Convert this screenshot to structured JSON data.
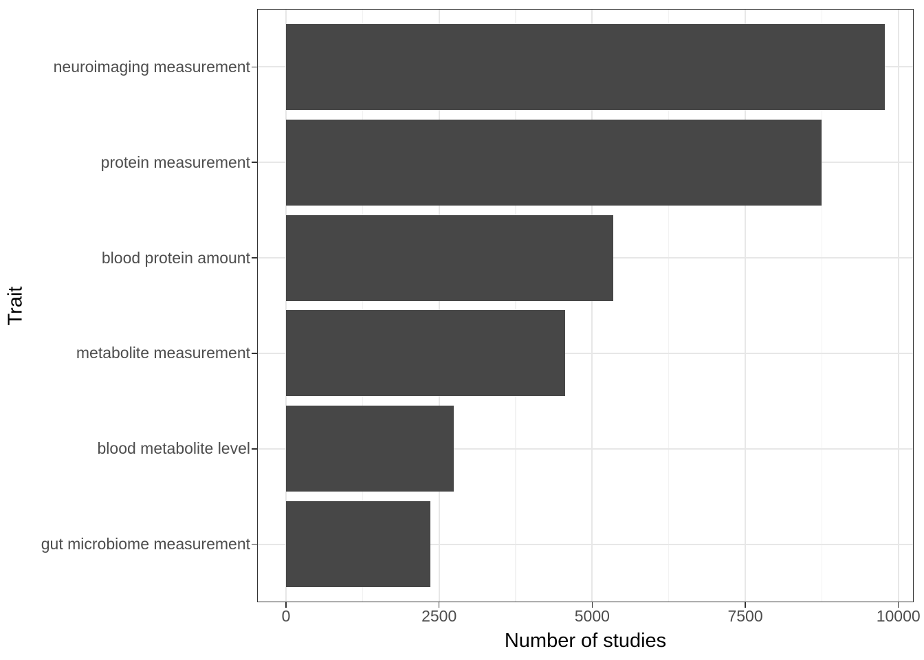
{
  "chart_data": {
    "type": "bar",
    "orientation": "horizontal",
    "title": "",
    "xlabel": "Number of studies",
    "ylabel": "Trait",
    "categories": [
      "neuroimaging measurement",
      "protein measurement",
      "blood protein amount",
      "metabolite measurement",
      "blood metabolite level",
      "gut microbiome measurement"
    ],
    "values": [
      9780,
      8750,
      5340,
      4560,
      2740,
      2360
    ],
    "x_ticks": [
      0,
      2500,
      5000,
      7500,
      10000
    ],
    "x_tick_labels": [
      "0",
      "2500",
      "5000",
      "7500",
      "10000"
    ],
    "x_minor_ticks": [
      1250,
      3750,
      6250,
      8750
    ],
    "xlim": [
      -460,
      10240
    ],
    "grid": "x-major, x-minor, y-major",
    "legend": "none"
  },
  "colors": {
    "bar": "#474747",
    "panel_border": "#333333",
    "grid_major": "#e7e7e7",
    "grid_minor": "#f2f2f2",
    "tick_mark": "#333333",
    "tick_label": "#4d4d4d",
    "axis_title": "#000000",
    "background": "#ffffff"
  }
}
